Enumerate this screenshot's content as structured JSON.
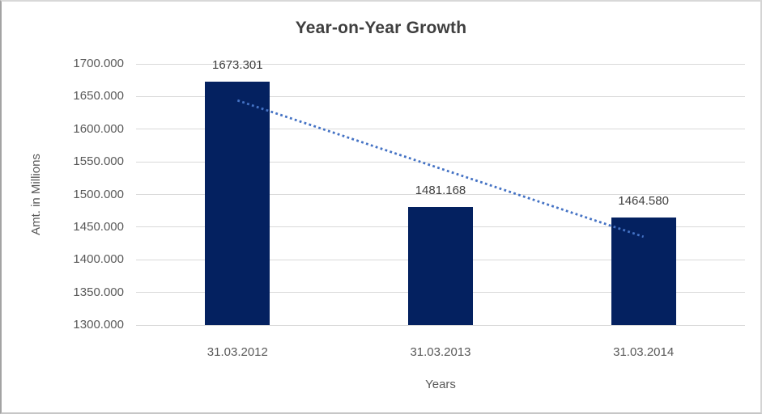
{
  "chart_data": {
    "type": "bar",
    "title": "Year-on-Year Growth",
    "xlabel": "Years",
    "ylabel": "Amt. in Millions",
    "categories": [
      "31.03.2012",
      "31.03.2013",
      "31.03.2014"
    ],
    "values": [
      1673.301,
      1481.168,
      1464.58
    ],
    "data_labels": [
      "1673.301",
      "1481.168",
      "1464.580"
    ],
    "ylim": [
      1300,
      1700
    ],
    "ytick_step": 50,
    "yticks": [
      "1300.000",
      "1350.000",
      "1400.000",
      "1450.000",
      "1500.000",
      "1550.000",
      "1600.000",
      "1650.000",
      "1700.000"
    ],
    "grid": true,
    "legend": "none",
    "trendline": {
      "style": "dotted",
      "start_value": 1644.0,
      "end_value": 1435.3,
      "color": "#4472C4"
    },
    "colors": {
      "bar": "#042160",
      "gridline": "#D9D9D9",
      "title_text": "#3F3F3F",
      "axis_text": "#595959",
      "label_text": "#3F3F3F",
      "trendline": "#4472C4",
      "background": "#FFFFFF"
    }
  }
}
